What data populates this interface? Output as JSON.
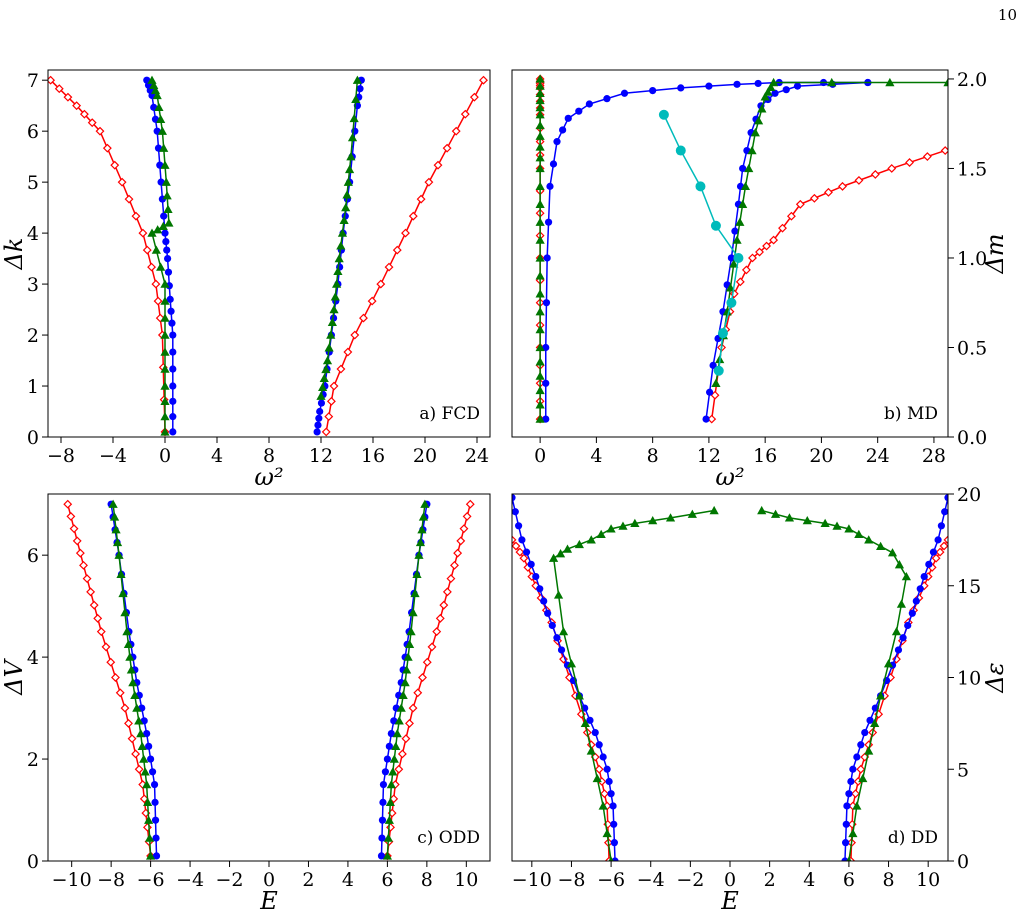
{
  "page_number": "10",
  "colors": {
    "blue": "#0000ff",
    "green": "#007700",
    "red": "#ff0000",
    "cyan": "#00bbbb"
  },
  "chart_data": [
    {
      "id": "fcd",
      "type": "line",
      "label": "a) FCD",
      "xlabel": "ω²",
      "ylabel": "Δk",
      "xlim": [
        -9,
        25
      ],
      "ylim": [
        0,
        7.2
      ],
      "xticks": [
        -8,
        -4,
        0,
        4,
        8,
        12,
        16,
        20,
        24
      ],
      "yticks": [
        0,
        1,
        2,
        3,
        4,
        5,
        6,
        7
      ],
      "series": [
        {
          "color": "red",
          "marker": "diamond",
          "branch": "low",
          "x": [
            0.0,
            -0.2,
            -0.7,
            -1.7,
            -3.3,
            -5.0,
            -6.8,
            -8.8
          ],
          "y": [
            0.1,
            2.0,
            3.0,
            4.0,
            5.0,
            6.0,
            6.5,
            7.0
          ]
        },
        {
          "color": "red",
          "marker": "diamond",
          "branch": "high",
          "x": [
            12.4,
            13.0,
            14.6,
            16.6,
            18.5,
            20.3,
            22.4,
            24.5
          ],
          "y": [
            0.1,
            1.0,
            2.0,
            3.0,
            4.0,
            5.0,
            6.0,
            7.0
          ]
        },
        {
          "color": "blue",
          "marker": "circle",
          "branch": "low",
          "x": [
            0.6,
            0.6,
            0.6,
            0.4,
            0.2,
            0.0,
            -0.3,
            -0.6,
            -1.0,
            -1.4
          ],
          "y": [
            0.1,
            1.0,
            2.0,
            2.7,
            3.5,
            4.0,
            5.0,
            6.0,
            6.7,
            7.0
          ]
        },
        {
          "color": "blue",
          "marker": "circle",
          "branch": "high",
          "x": [
            11.7,
            11.9,
            12.3,
            12.8,
            13.3,
            13.7,
            14.2,
            14.8,
            15.1
          ],
          "y": [
            0.1,
            0.5,
            1.0,
            2.0,
            3.0,
            4.0,
            5.0,
            6.5,
            7.0
          ]
        },
        {
          "color": "green",
          "marker": "triangle",
          "branch": "low",
          "x": [
            0.0,
            0.0,
            0.0,
            0.0,
            -1.0,
            0.3,
            0.1,
            -0.2,
            -0.6,
            -1.0
          ],
          "y": [
            0.1,
            1.0,
            2.0,
            3.0,
            4.0,
            4.2,
            5.0,
            6.0,
            6.7,
            7.0
          ]
        },
        {
          "color": "green",
          "marker": "triangle",
          "branch": "high",
          "x": [
            12.0,
            12.5,
            13.0,
            13.4,
            13.9,
            14.3,
            14.8
          ],
          "y": [
            0.8,
            1.5,
            2.5,
            3.5,
            4.5,
            5.5,
            7.0
          ]
        }
      ]
    },
    {
      "id": "md",
      "type": "line",
      "label": "b) MD",
      "xlabel": "ω²",
      "ylabel": "Δm",
      "xlim": [
        -2,
        29
      ],
      "ylim": [
        0,
        2.05
      ],
      "xticks": [
        0,
        4,
        8,
        12,
        16,
        20,
        24,
        28
      ],
      "yticks": [
        0.0,
        0.5,
        1.0,
        1.5,
        2.0
      ],
      "series": [
        {
          "color": "red",
          "marker": "diamond",
          "branch": "low",
          "x": [
            0,
            0,
            0,
            0,
            0,
            0,
            0
          ],
          "y": [
            0.1,
            0.5,
            1.0,
            1.5,
            1.8,
            1.95,
            2.0
          ]
        },
        {
          "color": "red",
          "marker": "diamond",
          "branch": "high",
          "x": [
            12.2,
            12.9,
            13.8,
            15.1,
            16.6,
            18.5,
            21.5,
            25.0,
            28.8
          ],
          "y": [
            0.1,
            0.5,
            0.8,
            1.0,
            1.1,
            1.3,
            1.4,
            1.5,
            1.6
          ]
        },
        {
          "color": "blue",
          "marker": "circle",
          "branch": "low",
          "x": [
            0.4,
            0.4,
            0.5,
            0.7,
            1.2,
            2.0,
            3.5,
            6.0,
            10.0,
            14.0,
            17.0,
            23.3
          ],
          "y": [
            0.1,
            0.5,
            1.0,
            1.4,
            1.65,
            1.78,
            1.86,
            1.92,
            1.95,
            1.97,
            1.98,
            1.98
          ]
        },
        {
          "color": "blue",
          "marker": "circle",
          "branch": "high",
          "x": [
            11.8,
            12.3,
            13.0,
            13.6,
            14.1,
            14.4,
            15.0,
            15.7,
            16.7,
            18.3,
            23.3
          ],
          "y": [
            0.1,
            0.4,
            0.7,
            1.0,
            1.3,
            1.5,
            1.7,
            1.85,
            1.92,
            1.96,
            1.98
          ]
        },
        {
          "color": "green",
          "marker": "triangle",
          "branch": "low",
          "x": [
            0,
            0,
            0,
            0,
            0,
            0
          ],
          "y": [
            0.1,
            0.5,
            1.0,
            1.5,
            1.8,
            2.0
          ]
        },
        {
          "color": "green",
          "marker": "triangle",
          "branch": "high",
          "x": [
            12.5,
            13.3,
            14.0,
            14.6,
            15.3,
            16.0,
            16.6,
            29.0
          ],
          "y": [
            0.3,
            0.7,
            1.1,
            1.4,
            1.7,
            1.9,
            1.98,
            1.98
          ]
        },
        {
          "color": "cyan",
          "marker": "bigcircle",
          "branch": "single",
          "x": [
            8.8,
            10.0,
            11.4,
            12.5,
            14.1,
            13.6,
            13.0,
            12.7
          ],
          "y": [
            1.8,
            1.6,
            1.4,
            1.18,
            1.0,
            0.75,
            0.58,
            0.37
          ]
        }
      ]
    },
    {
      "id": "odd",
      "type": "line",
      "label": "c) ODD",
      "xlabel": "E",
      "ylabel": "ΔV",
      "xlim": [
        -11.2,
        11.2
      ],
      "ylim": [
        0,
        7.2
      ],
      "xticks": [
        -10,
        -8,
        -6,
        -4,
        -2,
        0,
        2,
        4,
        6,
        8,
        10
      ],
      "yticks": [
        0,
        2,
        4,
        6
      ],
      "series": [
        {
          "color": "red",
          "marker": "diamond",
          "branch": "low",
          "x": [
            -6.0,
            -6.4,
            -7.3,
            -8.5,
            -9.4,
            -10.2
          ],
          "y": [
            0.1,
            1.5,
            3.0,
            4.5,
            5.8,
            7.0
          ]
        },
        {
          "color": "red",
          "marker": "diamond",
          "branch": "high",
          "x": [
            6.0,
            6.4,
            7.3,
            8.5,
            9.4,
            10.2
          ],
          "y": [
            0.1,
            1.5,
            3.0,
            4.5,
            5.8,
            7.0
          ]
        },
        {
          "color": "blue",
          "marker": "circle",
          "branch": "low",
          "x": [
            -5.7,
            -5.8,
            -6.2,
            -6.7,
            -7.1,
            -7.6,
            -8.0
          ],
          "y": [
            0.1,
            1.5,
            2.5,
            3.5,
            4.5,
            6.0,
            7.0
          ]
        },
        {
          "color": "blue",
          "marker": "circle",
          "branch": "high",
          "x": [
            5.7,
            5.8,
            6.2,
            6.7,
            7.1,
            7.6,
            8.0
          ],
          "y": [
            0.1,
            1.5,
            2.5,
            3.5,
            4.5,
            6.0,
            7.0
          ]
        },
        {
          "color": "green",
          "marker": "triangle",
          "branch": "low",
          "x": [
            -6.0,
            -6.2,
            -6.5,
            -6.9,
            -7.2,
            -7.6,
            -7.9
          ],
          "y": [
            0.1,
            1.5,
            2.5,
            3.5,
            4.5,
            6.0,
            7.0
          ]
        },
        {
          "color": "green",
          "marker": "triangle",
          "branch": "high",
          "x": [
            6.0,
            6.2,
            6.5,
            6.9,
            7.2,
            7.6,
            7.9
          ],
          "y": [
            0.1,
            1.5,
            2.5,
            3.5,
            4.5,
            6.0,
            7.0
          ]
        }
      ]
    },
    {
      "id": "dd",
      "type": "line",
      "label": "d) DD",
      "xlabel": "E",
      "ylabel": "Δε",
      "xlim": [
        -11,
        11
      ],
      "ylim": [
        0,
        20
      ],
      "xticks": [
        -10,
        -8,
        -6,
        -4,
        -2,
        0,
        2,
        4,
        6,
        8,
        10
      ],
      "yticks": [
        0,
        5,
        10,
        15,
        20
      ],
      "series": [
        {
          "color": "red",
          "marker": "diamond",
          "branch": "low",
          "x": [
            -6.1,
            -6.2,
            -6.6,
            -7.2,
            -8.1,
            -9.0,
            -9.8,
            -10.4,
            -11.0
          ],
          "y": [
            0,
            3.0,
            5.0,
            7.0,
            10.0,
            13.0,
            15.0,
            16.5,
            17.5
          ]
        },
        {
          "color": "red",
          "marker": "diamond",
          "branch": "high",
          "x": [
            6.1,
            6.2,
            6.6,
            7.2,
            8.1,
            9.0,
            9.8,
            10.4,
            11.0
          ],
          "y": [
            0,
            3.0,
            5.0,
            7.0,
            10.0,
            13.0,
            15.0,
            16.5,
            17.5
          ]
        },
        {
          "color": "blue",
          "marker": "circle",
          "branch": "low",
          "x": [
            -5.8,
            -5.9,
            -6.2,
            -6.8,
            -7.6,
            -8.5,
            -9.2,
            -9.8,
            -10.5,
            -11.0
          ],
          "y": [
            0,
            3.0,
            5.0,
            7.0,
            9.0,
            11.5,
            13.5,
            15.5,
            17.5,
            19.8
          ]
        },
        {
          "color": "blue",
          "marker": "circle",
          "branch": "high",
          "x": [
            5.8,
            5.9,
            6.2,
            6.8,
            7.6,
            8.5,
            9.2,
            9.8,
            10.5,
            11.0
          ],
          "y": [
            0,
            3.0,
            5.0,
            7.0,
            9.0,
            11.5,
            13.5,
            15.5,
            17.5,
            19.8
          ]
        },
        {
          "color": "green",
          "marker": "triangle",
          "branch": "low",
          "x": [
            -6.0,
            -6.4,
            -7.0,
            -7.6,
            -8.4,
            -8.9,
            -8.2,
            -7.0,
            -6.0,
            -4.8,
            -3.0,
            -0.8
          ],
          "y": [
            0,
            3.0,
            6.0,
            9.0,
            12.5,
            16.5,
            17.0,
            17.5,
            18.1,
            18.4,
            18.7,
            19.1
          ]
        },
        {
          "color": "green",
          "marker": "triangle",
          "branch": "high",
          "x": [
            6.0,
            6.4,
            7.0,
            7.6,
            8.4,
            8.9,
            8.2,
            7.0,
            6.0,
            4.8,
            3.0,
            1.6
          ],
          "y": [
            0,
            3.0,
            6.0,
            9.0,
            12.5,
            15.5,
            16.8,
            17.5,
            18.1,
            18.4,
            18.7,
            19.1
          ]
        }
      ]
    }
  ]
}
